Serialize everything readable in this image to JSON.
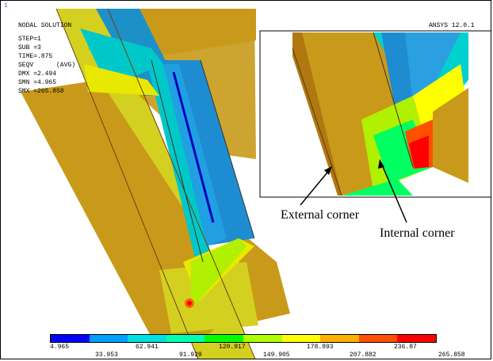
{
  "window_number": "1",
  "header": {
    "title": "NODAL SOLUTION",
    "version": "ANSYS 12.0.1"
  },
  "info": {
    "step": "STEP=1",
    "sub": "SUB =3",
    "time": "TIME=.875",
    "seqv": "SEQV      (AVG)",
    "dmx": "DMX =2.494",
    "smn": "SMN =4.965",
    "smx": "SMX =265.858"
  },
  "annotations": {
    "external": "External corner",
    "internal": "Internal corner"
  },
  "colorbar": {
    "colors": [
      "#0000ff",
      "#00a0ff",
      "#00e0e0",
      "#00ffb0",
      "#00ff00",
      "#b0ff00",
      "#ffff00",
      "#ffb000",
      "#ff5000",
      "#ff0000"
    ],
    "top_labels": [
      "4.965",
      "62.941",
      "120.917",
      "178.893",
      "236.87"
    ],
    "bottom_labels": [
      "33.953",
      "91.929",
      "149.905",
      "207.882",
      "265.858"
    ]
  }
}
